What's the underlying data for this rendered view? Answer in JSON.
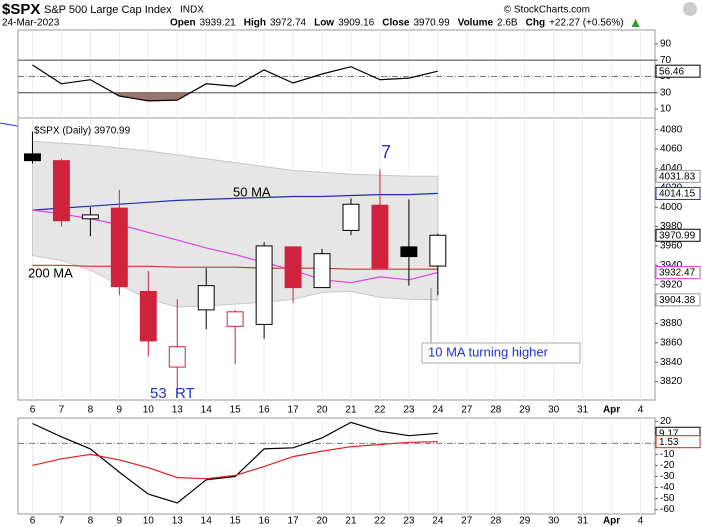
{
  "header": {
    "symbol": "$SPX",
    "name": "S&P 500 Large Cap Index",
    "exchange": "INDX",
    "credit": "© StockCharts.com",
    "date": "24-Mar-2023",
    "quote": [
      {
        "label": "Open",
        "value": "3939.21"
      },
      {
        "label": "High",
        "value": "3972.74"
      },
      {
        "label": "Low",
        "value": "3909.16"
      },
      {
        "label": "Close",
        "value": "3970.99"
      },
      {
        "label": "Volume",
        "value": "2.6B"
      },
      {
        "label": "Chg",
        "value": "+22.27 (+0.56%)"
      }
    ]
  },
  "chart_data": [
    {
      "type": "line",
      "ylim": [
        -1,
        107
      ],
      "yticks": [
        10,
        30,
        50,
        70,
        90
      ],
      "hlines": [
        {
          "value": 70,
          "style": "solid"
        },
        {
          "value": 50,
          "style": "dashdot"
        },
        {
          "value": 30,
          "style": "solid"
        }
      ],
      "fill_below": 30,
      "fill_color": "#9b7370",
      "series": [
        {
          "color": "#000000",
          "label_last": true,
          "values": [
            64,
            41,
            46,
            26,
            20,
            21,
            41,
            38,
            58,
            42,
            53,
            62,
            46,
            48,
            56.46,
            null,
            null,
            null,
            null,
            null,
            null,
            null
          ]
        }
      ]
    },
    {
      "type": "candlestick",
      "label": "$SPX (Daily) 3970.99",
      "ylim": [
        3801,
        4092
      ],
      "yticks": [
        3820,
        3840,
        3860,
        3880,
        3900,
        3920,
        3940,
        3960,
        3980,
        4000,
        4020,
        4040,
        4060,
        4080
      ],
      "categories": [
        "6",
        "7",
        "8",
        "9",
        "10",
        "13",
        "14",
        "15",
        "16",
        "17",
        "20",
        "21",
        "22",
        "23",
        "24",
        "27",
        "28",
        "29",
        "30",
        "31",
        "Apr",
        "4"
      ],
      "open": [
        4055,
        4048,
        3988,
        3999,
        3913,
        3835,
        3894,
        3877,
        3879,
        3959,
        3917,
        3976,
        4002,
        3959,
        3939.21,
        null,
        null,
        null,
        null,
        null,
        null,
        null
      ],
      "high": [
        4078,
        4050,
        4000,
        4018,
        3934,
        3905,
        3937,
        3894,
        3964,
        3959,
        3957,
        4009,
        4039,
        4008,
        3972.74,
        null,
        null,
        null,
        null,
        null,
        null,
        null
      ],
      "low": [
        4045,
        3980,
        3970,
        3909,
        3846,
        3809,
        3874,
        3838,
        3864,
        3901,
        3917,
        3971,
        3936,
        3919,
        3909.16,
        null,
        null,
        null,
        null,
        null,
        null,
        null
      ],
      "close": [
        4048,
        3986,
        3992,
        3918,
        3862,
        3856,
        3919,
        3892,
        3960,
        3917,
        3952,
        4003,
        3937,
        3949,
        3970.99,
        null,
        null,
        null,
        null,
        null,
        null,
        null
      ],
      "band": {
        "color": "#e6e6e6",
        "label_last": true,
        "upper": [
          4068,
          4066,
          4064,
          4061,
          4058,
          4054,
          4050,
          4046,
          4042,
          4038,
          4036,
          4034,
          4033,
          4032,
          4031.83,
          null,
          null,
          null,
          null,
          null,
          null,
          null
        ],
        "lower": [
          3950,
          3945,
          3935,
          3920,
          3905,
          3897,
          3898,
          3900,
          3902,
          3905,
          3912,
          3913,
          3907,
          3905,
          3904.38,
          null,
          null,
          null,
          null,
          null,
          null,
          null
        ]
      },
      "overlays": [
        {
          "name": "50 MA",
          "color": "#1f2fa8",
          "label_last": true,
          "values": [
            3997,
            3999,
            4001,
            4003,
            4005,
            4007,
            4008,
            4009,
            4010,
            4011,
            4011,
            4012,
            4013,
            4013,
            4014.15,
            null,
            null,
            null,
            null,
            null,
            null,
            null
          ]
        },
        {
          "name": "200 MA",
          "color": "#cc3333",
          "label_last": false,
          "values": [
            3940,
            3940,
            3939,
            3939,
            3939,
            3938,
            3938,
            3938,
            3937,
            3937,
            3937,
            3936,
            3936,
            3936,
            3936,
            null,
            null,
            null,
            null,
            null,
            null,
            null
          ]
        },
        {
          "color": "#e040e0",
          "label_last": true,
          "values": [
            3997,
            3993,
            3988,
            3982,
            3974,
            3966,
            3958,
            3951,
            3943,
            3935,
            3925,
            3922,
            3928,
            3925,
            3932.47,
            null,
            null,
            null,
            null,
            null,
            null,
            null
          ]
        }
      ],
      "close_label_last": true,
      "annotations": [
        "7",
        "53  RT",
        "10 MA turning higher"
      ]
    },
    {
      "type": "line",
      "ylim": [
        -64,
        23
      ],
      "yticks": [
        -60,
        -50,
        -40,
        -30,
        -20,
        -10,
        0,
        10,
        20
      ],
      "hlines": [
        {
          "value": 0,
          "style": "dashdot"
        }
      ],
      "series": [
        {
          "color": "#000000",
          "label_last": true,
          "values": [
            18,
            6,
            -5,
            -26,
            -46,
            -54,
            -33,
            -30,
            -5,
            -4,
            5,
            19,
            11,
            7,
            9.17,
            null,
            null,
            null,
            null,
            null,
            null,
            null
          ]
        },
        {
          "color": "#dd2222",
          "label_last": true,
          "values": [
            -20,
            -14,
            -10,
            -15,
            -22,
            -31,
            -32,
            -29,
            -21,
            -12,
            -7,
            -3,
            -1,
            1,
            1.53,
            null,
            null,
            null,
            null,
            null,
            null,
            null
          ]
        }
      ]
    }
  ]
}
